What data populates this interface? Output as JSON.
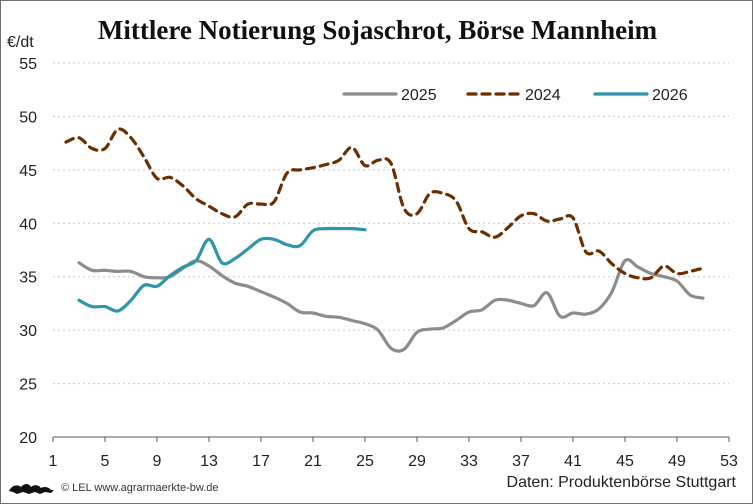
{
  "chart_data": {
    "type": "line",
    "title": "Mittlere Notierung Sojaschrot, Börse Mannheim",
    "ylabel": "€/dt",
    "xlabel": "",
    "xlim": [
      1,
      53
    ],
    "ylim": [
      20,
      55
    ],
    "x_ticks": [
      1,
      5,
      9,
      13,
      17,
      21,
      25,
      29,
      33,
      37,
      41,
      45,
      49,
      53
    ],
    "y_ticks": [
      20,
      25,
      30,
      35,
      40,
      45,
      50,
      55
    ],
    "grid": "horizontal dotted",
    "legend_position": "top-right",
    "series": [
      {
        "name": "2025",
        "color": "#8c8c8c",
        "style": "solid",
        "x": [
          3,
          4,
          5,
          6,
          7,
          8,
          9,
          10,
          11,
          12,
          13,
          14,
          15,
          16,
          17,
          18,
          19,
          20,
          21,
          22,
          23,
          24,
          25,
          26,
          27,
          28,
          29,
          30,
          31,
          32,
          33,
          34,
          35,
          36,
          37,
          38,
          39,
          40,
          41,
          42,
          43,
          44,
          45,
          46,
          47,
          48,
          49,
          50,
          51
        ],
        "values": [
          36.3,
          35.6,
          35.6,
          35.5,
          35.5,
          35.0,
          34.9,
          35.0,
          35.8,
          36.5,
          36.0,
          35.1,
          34.4,
          34.1,
          33.6,
          33.1,
          32.5,
          31.7,
          31.6,
          31.3,
          31.2,
          30.9,
          30.6,
          30.0,
          28.3,
          28.2,
          29.8,
          30.1,
          30.2,
          30.9,
          31.7,
          31.9,
          32.8,
          32.8,
          32.5,
          32.3,
          33.5,
          31.3,
          31.6,
          31.5,
          32.0,
          33.6,
          36.5,
          35.9,
          35.3,
          35.0,
          34.6,
          33.3,
          33.0
        ]
      },
      {
        "name": "2024",
        "color": "#6b2e00",
        "style": "dashed",
        "x": [
          2,
          3,
          4,
          5,
          6,
          7,
          8,
          9,
          10,
          11,
          12,
          13,
          14,
          15,
          16,
          17,
          18,
          19,
          20,
          21,
          22,
          23,
          24,
          25,
          26,
          27,
          28,
          29,
          30,
          31,
          32,
          33,
          34,
          35,
          36,
          37,
          38,
          39,
          40,
          41,
          42,
          43,
          44,
          45,
          46,
          47,
          48,
          49,
          50,
          51
        ],
        "values": [
          47.6,
          48.0,
          47.0,
          47.0,
          48.8,
          48.0,
          46.2,
          44.2,
          44.3,
          43.5,
          42.3,
          41.6,
          40.9,
          40.6,
          41.8,
          41.8,
          42.0,
          44.7,
          45.0,
          45.2,
          45.5,
          45.9,
          47.1,
          45.4,
          45.9,
          45.6,
          41.4,
          40.9,
          42.8,
          42.8,
          42.1,
          39.5,
          39.2,
          38.7,
          39.6,
          40.7,
          40.9,
          40.2,
          40.4,
          40.5,
          37.3,
          37.4,
          36.2,
          35.3,
          34.9,
          34.9,
          36.0,
          35.3,
          35.5,
          35.8
        ]
      },
      {
        "name": "2026",
        "color": "#2e96a8",
        "style": "solid",
        "x": [
          3,
          4,
          5,
          6,
          7,
          8,
          9,
          10,
          11,
          12,
          13,
          14,
          15,
          16,
          17,
          18,
          19,
          20,
          21,
          22,
          23,
          24,
          25
        ],
        "values": [
          32.8,
          32.2,
          32.2,
          31.8,
          32.8,
          34.2,
          34.1,
          35.1,
          35.9,
          36.5,
          38.5,
          36.3,
          36.7,
          37.6,
          38.5,
          38.5,
          38.0,
          37.9,
          39.3,
          39.5,
          39.5,
          39.5,
          39.4
        ]
      }
    ]
  },
  "footer": {
    "copyright": "© LEL www.agrarmaerkte-bw.de",
    "source": "Daten: Produktenbörse Stuttgart"
  }
}
